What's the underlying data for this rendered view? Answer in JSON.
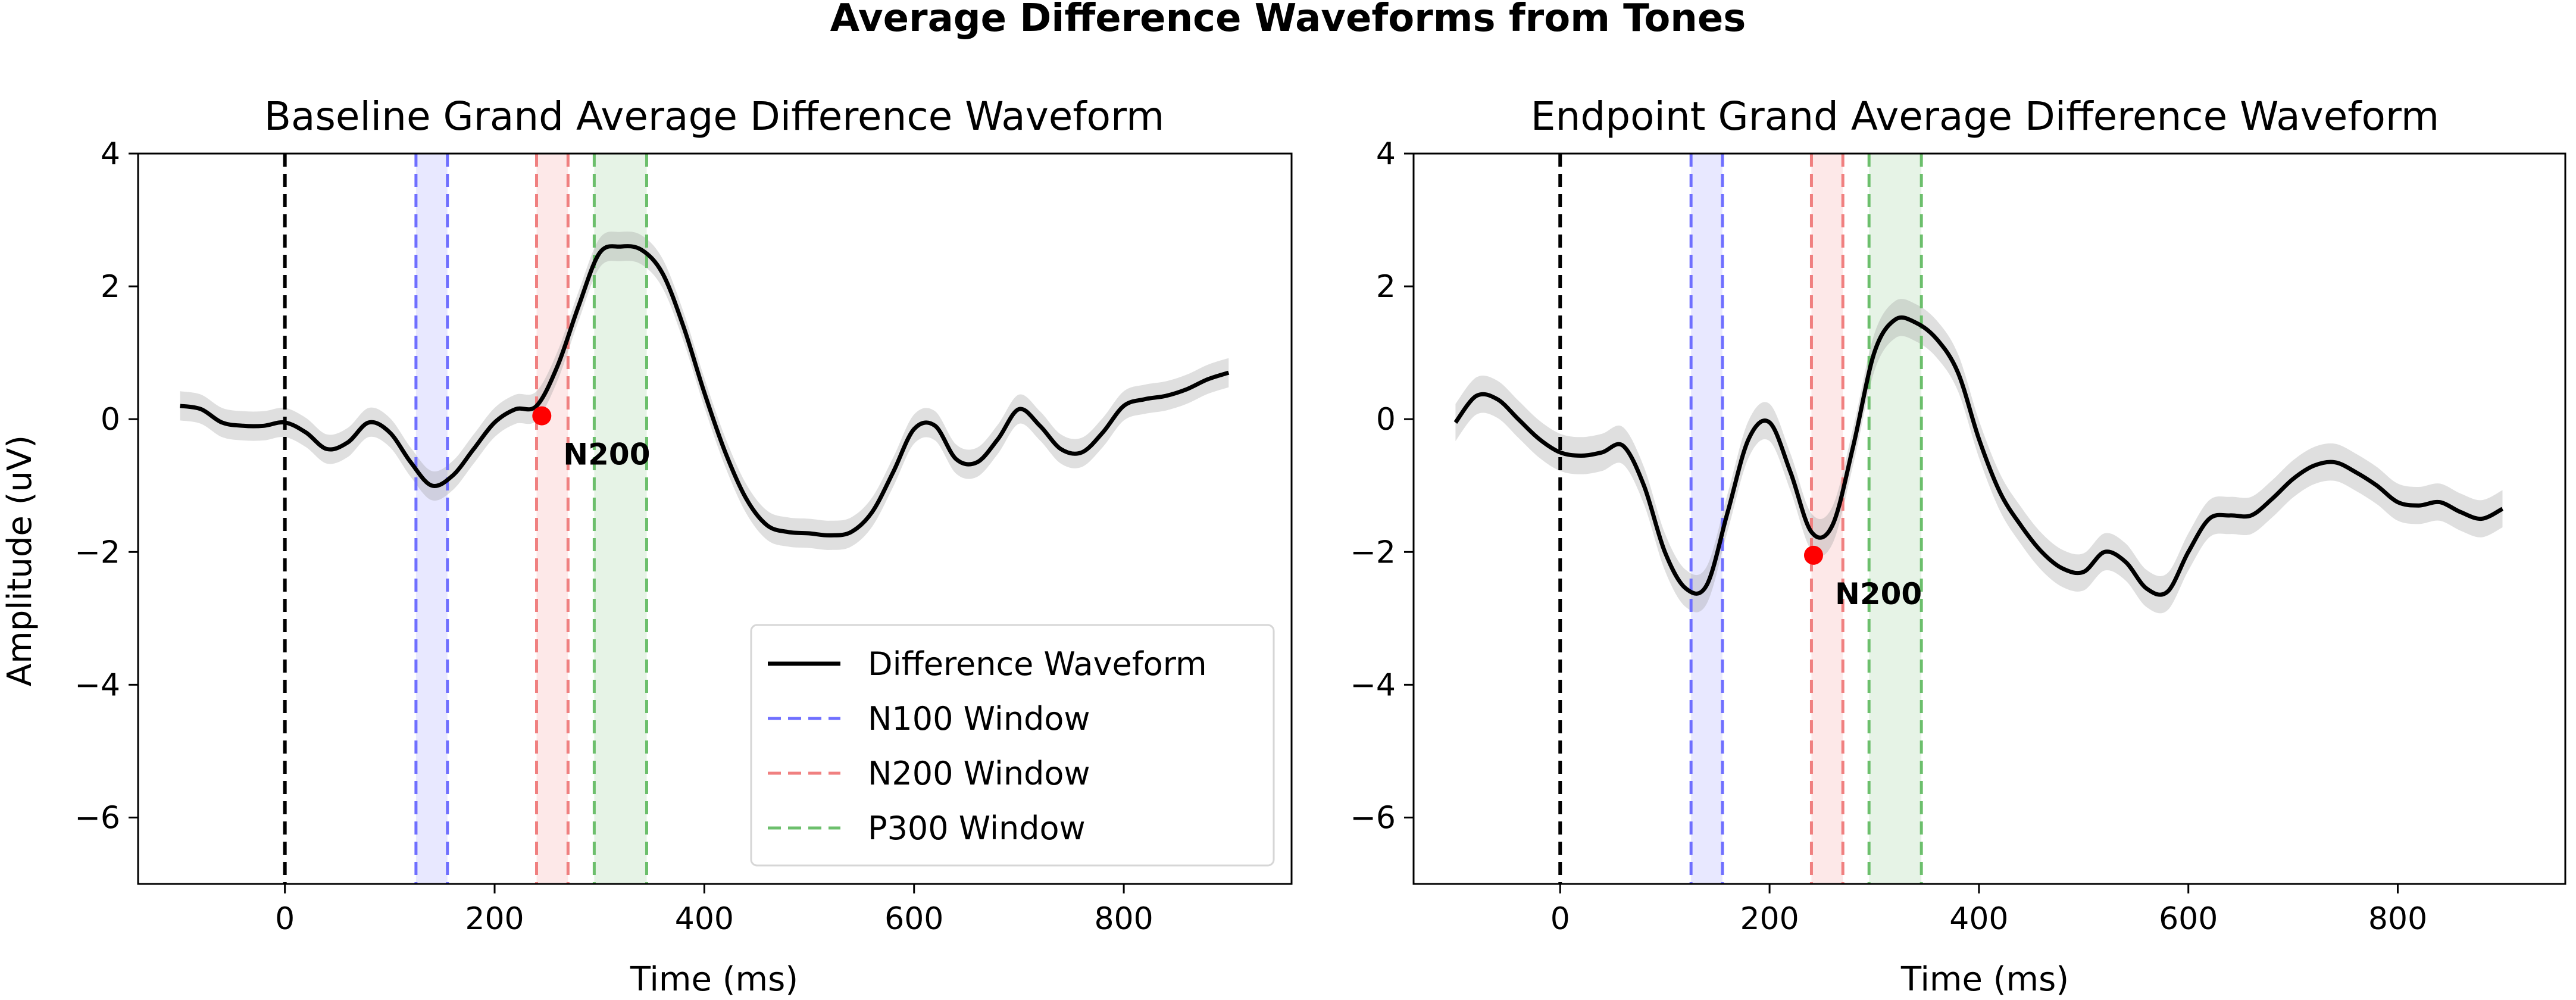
{
  "figure": {
    "title": "Average Difference Waveforms from Tones"
  },
  "chart_data": [
    {
      "type": "line",
      "title": "Baseline Grand Average Difference Waveform",
      "xlabel": "Time (ms)",
      "ylabel": "Amplitude (uV)",
      "xlim": [
        -140,
        960
      ],
      "ylim": [
        -7,
        4
      ],
      "xticks": [
        0,
        200,
        400,
        600,
        800
      ],
      "yticks": [
        -6,
        -4,
        -2,
        0,
        2,
        4
      ],
      "stimulus_onset_ms": 0,
      "windows": [
        {
          "name": "N100 Window",
          "start": 125,
          "end": 155,
          "color": "#6f6fff",
          "fill": "#e8e8ff"
        },
        {
          "name": "N200 Window",
          "start": 240,
          "end": 270,
          "color": "#f08080",
          "fill": "#fde8e8"
        },
        {
          "name": "P300 Window",
          "start": 295,
          "end": 345,
          "color": "#6cbf6c",
          "fill": "#e6f3e6"
        }
      ],
      "series": [
        {
          "name": "Difference Waveform",
          "color": "#000000",
          "sem": 0.22,
          "x": [
            -100,
            -80,
            -60,
            -40,
            -20,
            0,
            20,
            40,
            60,
            80,
            100,
            120,
            140,
            160,
            180,
            200,
            220,
            240,
            260,
            280,
            300,
            320,
            340,
            360,
            380,
            400,
            420,
            440,
            460,
            480,
            500,
            520,
            540,
            560,
            580,
            600,
            620,
            640,
            660,
            680,
            700,
            720,
            740,
            760,
            780,
            800,
            820,
            840,
            860,
            880,
            900
          ],
          "y": [
            0.2,
            0.15,
            -0.05,
            -0.1,
            -0.1,
            -0.05,
            -0.2,
            -0.45,
            -0.35,
            -0.05,
            -0.2,
            -0.65,
            -1.0,
            -0.85,
            -0.45,
            -0.05,
            0.15,
            0.2,
            0.8,
            1.7,
            2.5,
            2.6,
            2.55,
            2.2,
            1.4,
            0.4,
            -0.5,
            -1.2,
            -1.6,
            -1.7,
            -1.72,
            -1.75,
            -1.7,
            -1.4,
            -0.8,
            -0.15,
            -0.1,
            -0.6,
            -0.65,
            -0.3,
            0.15,
            -0.1,
            -0.45,
            -0.5,
            -0.2,
            0.2,
            0.3,
            0.35,
            0.45,
            0.6,
            0.7
          ]
        }
      ],
      "peak": {
        "label": "N200",
        "x": 245,
        "y": 0.05,
        "color": "#ff0000"
      },
      "legend": {
        "placement": "lower-right",
        "entries": [
          "Difference Waveform",
          "N100 Window",
          "N200 Window",
          "P300 Window"
        ]
      }
    },
    {
      "type": "line",
      "title": "Endpoint Grand Average Difference Waveform",
      "xlabel": "Time (ms)",
      "ylabel": "",
      "xlim": [
        -140,
        960
      ],
      "ylim": [
        -7,
        4
      ],
      "xticks": [
        0,
        200,
        400,
        600,
        800
      ],
      "yticks": [
        -6,
        -4,
        -2,
        0,
        2,
        4
      ],
      "stimulus_onset_ms": 0,
      "windows": [
        {
          "name": "N100 Window",
          "start": 125,
          "end": 155,
          "color": "#6f6fff",
          "fill": "#e8e8ff"
        },
        {
          "name": "N200 Window",
          "start": 240,
          "end": 270,
          "color": "#f08080",
          "fill": "#fde8e8"
        },
        {
          "name": "P300 Window",
          "start": 295,
          "end": 345,
          "color": "#6cbf6c",
          "fill": "#e6f3e6"
        }
      ],
      "series": [
        {
          "name": "Difference Waveform",
          "color": "#000000",
          "sem": 0.28,
          "x": [
            -100,
            -80,
            -60,
            -40,
            -20,
            0,
            20,
            40,
            60,
            80,
            100,
            120,
            140,
            160,
            180,
            200,
            220,
            240,
            260,
            280,
            300,
            320,
            340,
            360,
            380,
            400,
            420,
            440,
            460,
            480,
            500,
            520,
            540,
            560,
            580,
            600,
            620,
            640,
            660,
            680,
            700,
            720,
            740,
            760,
            780,
            800,
            820,
            840,
            860,
            880,
            900
          ],
          "y": [
            -0.05,
            0.35,
            0.3,
            0.0,
            -0.3,
            -0.5,
            -0.55,
            -0.5,
            -0.4,
            -1.0,
            -2.0,
            -2.55,
            -2.5,
            -1.4,
            -0.3,
            -0.05,
            -0.8,
            -1.7,
            -1.6,
            -0.4,
            1.0,
            1.5,
            1.45,
            1.2,
            0.7,
            -0.3,
            -1.1,
            -1.6,
            -2.0,
            -2.25,
            -2.3,
            -2.0,
            -2.15,
            -2.55,
            -2.6,
            -2.0,
            -1.5,
            -1.45,
            -1.45,
            -1.2,
            -0.9,
            -0.7,
            -0.65,
            -0.8,
            -1.0,
            -1.25,
            -1.3,
            -1.25,
            -1.4,
            -1.5,
            -1.35
          ]
        }
      ],
      "peak": {
        "label": "N200",
        "x": 242,
        "y": -2.05,
        "color": "#ff0000"
      }
    }
  ]
}
